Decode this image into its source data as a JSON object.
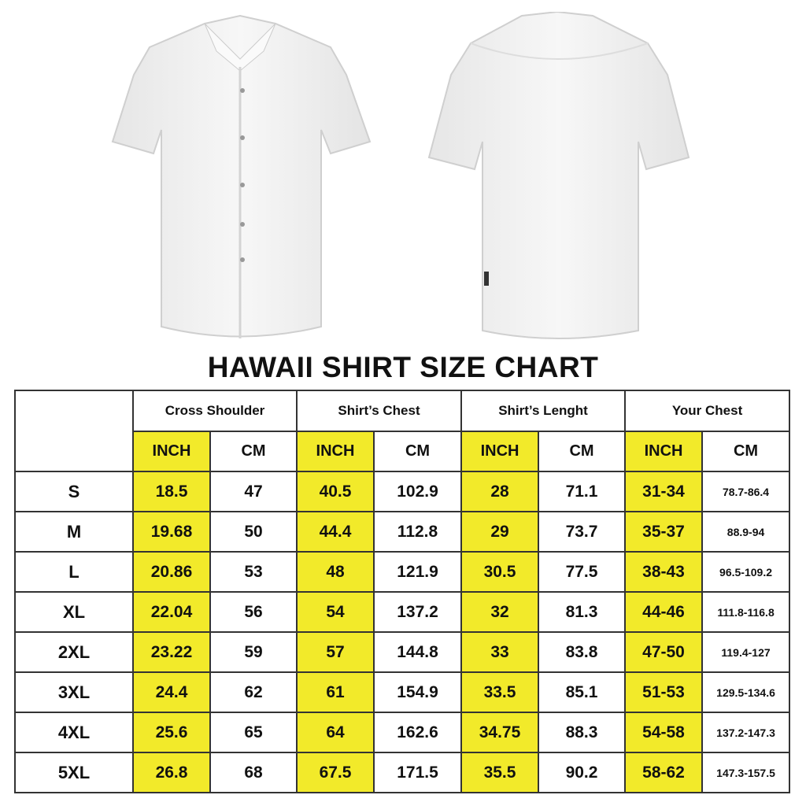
{
  "title": "HAWAII SHIRT SIZE CHART",
  "colors": {
    "highlight": "#f2ea2a",
    "border": "#333333",
    "shirt": "#f4f4f4"
  },
  "images": {
    "front": "white-shirt-front",
    "back": "white-shirt-back"
  },
  "chart_data": {
    "type": "table",
    "groups": [
      "Cross Shoulder",
      "Shirt’s Chest",
      "Shirt’s Lenght",
      "Your Chest"
    ],
    "units": [
      "INCH",
      "CM"
    ],
    "rows": [
      {
        "size": "S",
        "values": [
          "18.5",
          "47",
          "40.5",
          "102.9",
          "28",
          "71.1",
          "31-34",
          "78.7-86.4"
        ]
      },
      {
        "size": "M",
        "values": [
          "19.68",
          "50",
          "44.4",
          "112.8",
          "29",
          "73.7",
          "35-37",
          "88.9-94"
        ]
      },
      {
        "size": "L",
        "values": [
          "20.86",
          "53",
          "48",
          "121.9",
          "30.5",
          "77.5",
          "38-43",
          "96.5-109.2"
        ]
      },
      {
        "size": "XL",
        "values": [
          "22.04",
          "56",
          "54",
          "137.2",
          "32",
          "81.3",
          "44-46",
          "111.8-116.8"
        ]
      },
      {
        "size": "2XL",
        "values": [
          "23.22",
          "59",
          "57",
          "144.8",
          "33",
          "83.8",
          "47-50",
          "119.4-127"
        ]
      },
      {
        "size": "3XL",
        "values": [
          "24.4",
          "62",
          "61",
          "154.9",
          "33.5",
          "85.1",
          "51-53",
          "129.5-134.6"
        ]
      },
      {
        "size": "4XL",
        "values": [
          "25.6",
          "65",
          "64",
          "162.6",
          "34.75",
          "88.3",
          "54-58",
          "137.2-147.3"
        ]
      },
      {
        "size": "5XL",
        "values": [
          "26.8",
          "68",
          "67.5",
          "171.5",
          "35.5",
          "90.2",
          "58-62",
          "147.3-157.5"
        ]
      }
    ]
  }
}
